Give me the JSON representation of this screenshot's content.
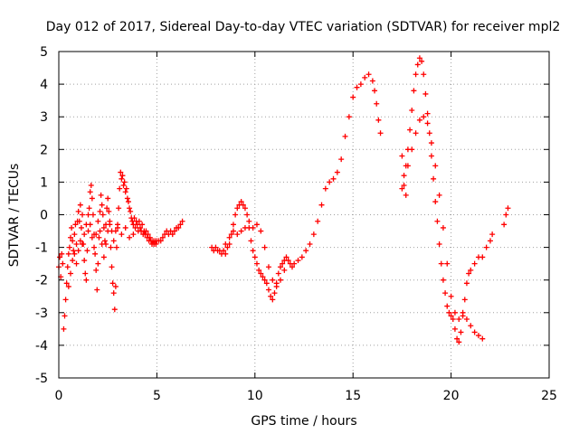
{
  "chart_data": {
    "type": "scatter",
    "title": "Day 012 of 2017, Sidereal Day-to-day VTEC variation (SDTVAR) for receiver mpl2",
    "xlabel": "GPS time / hours",
    "ylabel": "SDTVAR / TECUs",
    "xlim": [
      0,
      25
    ],
    "ylim": [
      -5,
      5
    ],
    "x_ticks": [
      "0",
      "5",
      "10",
      "15",
      "20",
      "25"
    ],
    "y_ticks": [
      "-5",
      "-4",
      "-3",
      "-2",
      "-1",
      "0",
      "1",
      "2",
      "3",
      "4",
      "5"
    ],
    "grid": true,
    "marker": "plus",
    "marker_color": "#ff0000",
    "series": [
      {
        "points": [
          [
            0.0,
            -1.6
          ],
          [
            0.05,
            -1.3
          ],
          [
            0.1,
            -1.9
          ],
          [
            0.15,
            -1.2
          ],
          [
            0.2,
            -1.5
          ],
          [
            0.25,
            -3.5
          ],
          [
            0.3,
            -3.1
          ],
          [
            0.35,
            -2.6
          ],
          [
            0.4,
            -2.1
          ],
          [
            0.45,
            -1.6
          ],
          [
            0.5,
            -1.2
          ],
          [
            0.55,
            -1.0
          ],
          [
            0.6,
            -0.7
          ],
          [
            0.65,
            -0.4
          ],
          [
            0.7,
            -0.8
          ],
          [
            0.75,
            -1.1
          ],
          [
            0.8,
            -0.6
          ],
          [
            0.85,
            -0.3
          ],
          [
            0.9,
            -0.9
          ],
          [
            0.95,
            -0.2
          ],
          [
            1.0,
            0.1
          ],
          [
            1.05,
            -0.2
          ],
          [
            1.1,
            0.3
          ],
          [
            1.15,
            -0.4
          ],
          [
            1.2,
            0.0
          ],
          [
            1.25,
            -0.9
          ],
          [
            1.3,
            -1.4
          ],
          [
            1.35,
            -1.8
          ],
          [
            1.4,
            -2.0
          ],
          [
            1.45,
            -1.1
          ],
          [
            1.5,
            -0.5
          ],
          [
            1.55,
            0.2
          ],
          [
            1.6,
            0.7
          ],
          [
            1.65,
            0.9
          ],
          [
            1.7,
            0.5
          ],
          [
            1.75,
            0.0
          ],
          [
            1.8,
            -0.6
          ],
          [
            1.85,
            -1.2
          ],
          [
            1.9,
            -1.7
          ],
          [
            1.95,
            -2.3
          ],
          [
            2.0,
            -1.5
          ],
          [
            2.05,
            -0.7
          ],
          [
            2.1,
            0.1
          ],
          [
            2.15,
            0.6
          ],
          [
            2.2,
            0.3
          ],
          [
            2.25,
            0.0
          ],
          [
            2.3,
            -0.4
          ],
          [
            2.35,
            -0.8
          ],
          [
            2.4,
            -0.3
          ],
          [
            2.45,
            0.2
          ],
          [
            2.5,
            0.5
          ],
          [
            2.55,
            0.1
          ],
          [
            2.6,
            -0.3
          ],
          [
            2.65,
            -1.0
          ],
          [
            2.7,
            -1.6
          ],
          [
            2.75,
            -2.1
          ],
          [
            2.8,
            -2.4
          ],
          [
            2.85,
            -2.9
          ],
          [
            2.9,
            -2.2
          ],
          [
            2.95,
            -1.0
          ],
          [
            3.0,
            -0.4
          ],
          [
            3.05,
            0.2
          ],
          [
            3.1,
            0.8
          ],
          [
            3.15,
            1.3
          ],
          [
            3.2,
            1.1
          ],
          [
            3.25,
            1.2
          ],
          [
            3.3,
            0.9
          ],
          [
            3.35,
            1.0
          ],
          [
            3.4,
            0.7
          ],
          [
            3.45,
            0.8
          ],
          [
            3.5,
            0.5
          ],
          [
            3.55,
            0.4
          ],
          [
            3.6,
            0.2
          ],
          [
            3.65,
            0.1
          ],
          [
            3.7,
            -0.1
          ],
          [
            3.75,
            -0.2
          ],
          [
            3.8,
            -0.3
          ],
          [
            3.85,
            -0.1
          ],
          [
            3.9,
            -0.4
          ],
          [
            3.95,
            -0.2
          ],
          [
            4.0,
            -0.3
          ],
          [
            4.05,
            -0.5
          ],
          [
            4.1,
            -0.2
          ],
          [
            4.15,
            -0.4
          ],
          [
            4.2,
            -0.5
          ],
          [
            4.25,
            -0.3
          ],
          [
            4.3,
            -0.6
          ],
          [
            4.35,
            -0.5
          ],
          [
            4.4,
            -0.6
          ],
          [
            4.45,
            -0.5
          ],
          [
            4.5,
            -0.7
          ],
          [
            4.55,
            -0.6
          ],
          [
            4.6,
            -0.8
          ],
          [
            4.65,
            -0.7
          ],
          [
            4.7,
            -0.8
          ],
          [
            4.75,
            -0.9
          ],
          [
            4.8,
            -0.8
          ],
          [
            4.85,
            -0.9
          ],
          [
            4.9,
            -0.8
          ],
          [
            4.95,
            -0.9
          ],
          [
            5.0,
            -0.8
          ],
          [
            5.1,
            -0.8
          ],
          [
            5.2,
            -0.8
          ],
          [
            5.3,
            -0.7
          ],
          [
            5.4,
            -0.6
          ],
          [
            5.5,
            -0.5
          ],
          [
            5.6,
            -0.6
          ],
          [
            5.7,
            -0.5
          ],
          [
            5.8,
            -0.6
          ],
          [
            5.9,
            -0.5
          ],
          [
            6.0,
            -0.4
          ],
          [
            6.1,
            -0.4
          ],
          [
            6.2,
            -0.3
          ],
          [
            6.3,
            -0.2
          ],
          [
            1.2,
            -0.9
          ],
          [
            1.3,
            -0.6
          ],
          [
            1.4,
            -0.3
          ],
          [
            1.5,
            0.0
          ],
          [
            1.6,
            -0.3
          ],
          [
            1.7,
            -0.7
          ],
          [
            1.8,
            -1.0
          ],
          [
            1.9,
            -0.6
          ],
          [
            2.0,
            -0.2
          ],
          [
            2.1,
            -0.5
          ],
          [
            2.2,
            -0.9
          ],
          [
            2.3,
            -1.3
          ],
          [
            2.4,
            -0.9
          ],
          [
            2.5,
            -0.5
          ],
          [
            2.6,
            -0.2
          ],
          [
            2.7,
            -0.5
          ],
          [
            2.8,
            -0.8
          ],
          [
            2.9,
            -0.5
          ],
          [
            3.0,
            -0.3
          ],
          [
            3.2,
            -0.6
          ],
          [
            3.4,
            -0.4
          ],
          [
            3.6,
            -0.7
          ],
          [
            3.8,
            -0.6
          ],
          [
            0.5,
            -2.2
          ],
          [
            0.6,
            -1.8
          ],
          [
            0.7,
            -1.4
          ],
          [
            0.8,
            -1.2
          ],
          [
            0.9,
            -1.5
          ],
          [
            1.0,
            -1.1
          ],
          [
            1.1,
            -0.8
          ],
          [
            7.8,
            -1.0
          ],
          [
            7.9,
            -1.1
          ],
          [
            8.0,
            -1.0
          ],
          [
            8.1,
            -1.1
          ],
          [
            8.2,
            -1.1
          ],
          [
            8.3,
            -1.2
          ],
          [
            8.4,
            -1.1
          ],
          [
            8.5,
            -1.2
          ],
          [
            8.6,
            -1.0
          ],
          [
            8.7,
            -0.9
          ],
          [
            8.8,
            -0.6
          ],
          [
            8.9,
            -0.3
          ],
          [
            9.0,
            0.0
          ],
          [
            9.1,
            0.2
          ],
          [
            9.2,
            0.3
          ],
          [
            9.3,
            0.4
          ],
          [
            9.4,
            0.3
          ],
          [
            9.5,
            0.2
          ],
          [
            9.6,
            0.0
          ],
          [
            9.7,
            -0.4
          ],
          [
            9.8,
            -0.8
          ],
          [
            9.9,
            -1.1
          ],
          [
            10.0,
            -1.3
          ],
          [
            10.1,
            -1.5
          ],
          [
            10.2,
            -1.7
          ],
          [
            10.3,
            -1.8
          ],
          [
            10.4,
            -1.9
          ],
          [
            10.5,
            -2.0
          ],
          [
            10.6,
            -2.1
          ],
          [
            10.7,
            -2.3
          ],
          [
            10.8,
            -2.5
          ],
          [
            10.9,
            -2.6
          ],
          [
            11.0,
            -2.4
          ],
          [
            11.1,
            -2.1
          ],
          [
            11.2,
            -1.8
          ],
          [
            11.3,
            -1.6
          ],
          [
            11.4,
            -1.5
          ],
          [
            11.5,
            -1.4
          ],
          [
            11.6,
            -1.3
          ],
          [
            11.7,
            -1.4
          ],
          [
            11.8,
            -1.5
          ],
          [
            11.9,
            -1.6
          ],
          [
            12.0,
            -1.5
          ],
          [
            12.2,
            -1.4
          ],
          [
            12.4,
            -1.3
          ],
          [
            12.6,
            -1.1
          ],
          [
            12.8,
            -0.9
          ],
          [
            13.0,
            -0.6
          ],
          [
            13.2,
            -0.2
          ],
          [
            13.4,
            0.3
          ],
          [
            13.6,
            0.8
          ],
          [
            13.8,
            1.0
          ],
          [
            14.0,
            1.1
          ],
          [
            14.2,
            1.3
          ],
          [
            14.4,
            1.7
          ],
          [
            14.6,
            2.4
          ],
          [
            14.8,
            3.0
          ],
          [
            15.0,
            3.6
          ],
          [
            15.2,
            3.9
          ],
          [
            15.4,
            4.0
          ],
          [
            15.6,
            4.2
          ],
          [
            15.8,
            4.3
          ],
          [
            16.0,
            4.1
          ],
          [
            16.1,
            3.8
          ],
          [
            16.2,
            3.4
          ],
          [
            16.3,
            2.9
          ],
          [
            16.4,
            2.5
          ],
          [
            8.5,
            -0.9
          ],
          [
            8.7,
            -0.7
          ],
          [
            8.9,
            -0.5
          ],
          [
            9.1,
            -0.6
          ],
          [
            9.3,
            -0.5
          ],
          [
            9.5,
            -0.4
          ],
          [
            9.7,
            -0.2
          ],
          [
            9.9,
            -0.4
          ],
          [
            10.1,
            -0.3
          ],
          [
            10.3,
            -0.5
          ],
          [
            10.5,
            -1.0
          ],
          [
            10.7,
            -1.6
          ],
          [
            10.9,
            -2.0
          ],
          [
            11.1,
            -2.2
          ],
          [
            11.3,
            -2.0
          ],
          [
            11.5,
            -1.7
          ],
          [
            17.5,
            1.8
          ],
          [
            17.6,
            1.2
          ],
          [
            17.7,
            0.6
          ],
          [
            17.6,
            0.9
          ],
          [
            17.7,
            1.5
          ],
          [
            17.8,
            2.0
          ],
          [
            17.9,
            2.6
          ],
          [
            18.0,
            3.2
          ],
          [
            18.1,
            3.8
          ],
          [
            18.2,
            4.3
          ],
          [
            18.3,
            4.6
          ],
          [
            18.4,
            4.8
          ],
          [
            18.5,
            4.7
          ],
          [
            18.6,
            4.3
          ],
          [
            18.7,
            3.7
          ],
          [
            18.8,
            3.1
          ],
          [
            18.9,
            2.5
          ],
          [
            19.0,
            1.8
          ],
          [
            19.1,
            1.1
          ],
          [
            19.2,
            0.4
          ],
          [
            19.3,
            -0.2
          ],
          [
            19.4,
            -0.9
          ],
          [
            19.5,
            -1.5
          ],
          [
            19.6,
            -2.0
          ],
          [
            19.7,
            -2.4
          ],
          [
            19.8,
            -2.8
          ],
          [
            19.9,
            -3.0
          ],
          [
            20.0,
            -3.1
          ],
          [
            20.1,
            -3.2
          ],
          [
            20.2,
            -3.5
          ],
          [
            20.3,
            -3.8
          ],
          [
            20.4,
            -3.9
          ],
          [
            20.5,
            -3.6
          ],
          [
            20.6,
            -3.1
          ],
          [
            20.7,
            -2.6
          ],
          [
            20.8,
            -2.1
          ],
          [
            20.9,
            -1.8
          ],
          [
            21.0,
            -1.7
          ],
          [
            21.2,
            -1.5
          ],
          [
            21.4,
            -1.3
          ],
          [
            21.6,
            -1.3
          ],
          [
            21.8,
            -1.0
          ],
          [
            22.0,
            -0.8
          ],
          [
            22.1,
            -0.6
          ],
          [
            17.5,
            0.8
          ],
          [
            17.8,
            1.5
          ],
          [
            18.0,
            2.0
          ],
          [
            18.2,
            2.5
          ],
          [
            18.4,
            2.9
          ],
          [
            18.6,
            3.0
          ],
          [
            18.8,
            2.8
          ],
          [
            19.0,
            2.2
          ],
          [
            19.2,
            1.5
          ],
          [
            19.4,
            0.6
          ],
          [
            19.6,
            -0.4
          ],
          [
            19.8,
            -1.5
          ],
          [
            20.0,
            -2.5
          ],
          [
            20.2,
            -3.0
          ],
          [
            20.4,
            -3.2
          ],
          [
            20.6,
            -3.0
          ],
          [
            20.8,
            -3.2
          ],
          [
            21.0,
            -3.4
          ],
          [
            21.2,
            -3.6
          ],
          [
            21.4,
            -3.7
          ],
          [
            21.6,
            -3.8
          ],
          [
            22.7,
            -0.3
          ],
          [
            22.8,
            0.0
          ],
          [
            22.9,
            0.2
          ]
        ]
      }
    ]
  }
}
